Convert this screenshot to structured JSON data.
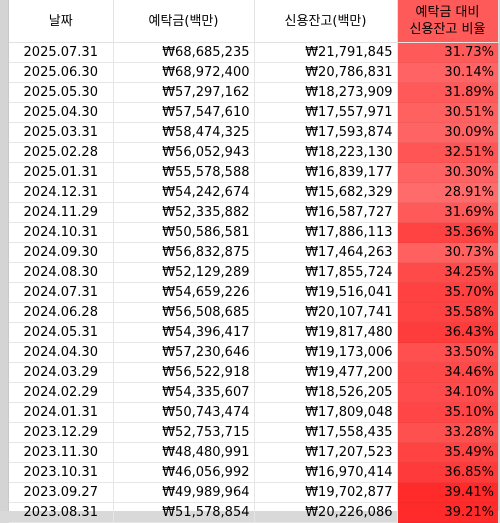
{
  "headers": {
    "date": "날짜",
    "deposits": "예탁금(백만)",
    "credit": "신용잔고(백만)",
    "ratio_line1": "예탁금 대비",
    "ratio_line2": "신용잔고 비율"
  },
  "colors": {
    "ratio_low": "#ff6b6b",
    "ratio_high": "#ff2a2a",
    "header_fill": "#ff5a5a"
  },
  "rows": [
    {
      "date": "2025.07.31",
      "deposits": "₩68,685,235",
      "credit": "₩21,791,845",
      "ratio": "31.73%",
      "ratio_value": 31.73
    },
    {
      "date": "2025.06.30",
      "deposits": "₩68,972,400",
      "credit": "₩20,786,831",
      "ratio": "30.14%",
      "ratio_value": 30.14
    },
    {
      "date": "2025.05.30",
      "deposits": "₩57,297,162",
      "credit": "₩18,273,909",
      "ratio": "31.89%",
      "ratio_value": 31.89
    },
    {
      "date": "2025.04.30",
      "deposits": "₩57,547,610",
      "credit": "₩17,557,971",
      "ratio": "30.51%",
      "ratio_value": 30.51
    },
    {
      "date": "2025.03.31",
      "deposits": "₩58,474,325",
      "credit": "₩17,593,874",
      "ratio": "30.09%",
      "ratio_value": 30.09
    },
    {
      "date": "2025.02.28",
      "deposits": "₩56,052,943",
      "credit": "₩18,223,130",
      "ratio": "32.51%",
      "ratio_value": 32.51
    },
    {
      "date": "2025.01.31",
      "deposits": "₩55,578,588",
      "credit": "₩16,839,177",
      "ratio": "30.30%",
      "ratio_value": 30.3
    },
    {
      "date": "2024.12.31",
      "deposits": "₩54,242,674",
      "credit": "₩15,682,329",
      "ratio": "28.91%",
      "ratio_value": 28.91
    },
    {
      "date": "2024.11.29",
      "deposits": "₩52,335,882",
      "credit": "₩16,587,727",
      "ratio": "31.69%",
      "ratio_value": 31.69
    },
    {
      "date": "2024.10.31",
      "deposits": "₩50,586,581",
      "credit": "₩17,886,113",
      "ratio": "35.36%",
      "ratio_value": 35.36
    },
    {
      "date": "2024.09.30",
      "deposits": "₩56,832,875",
      "credit": "₩17,464,263",
      "ratio": "30.73%",
      "ratio_value": 30.73
    },
    {
      "date": "2024.08.30",
      "deposits": "₩52,129,289",
      "credit": "₩17,855,724",
      "ratio": "34.25%",
      "ratio_value": 34.25
    },
    {
      "date": "2024.07.31",
      "deposits": "₩54,659,226",
      "credit": "₩19,516,041",
      "ratio": "35.70%",
      "ratio_value": 35.7
    },
    {
      "date": "2024.06.28",
      "deposits": "₩56,508,685",
      "credit": "₩20,107,741",
      "ratio": "35.58%",
      "ratio_value": 35.58
    },
    {
      "date": "2024.05.31",
      "deposits": "₩54,396,417",
      "credit": "₩19,817,480",
      "ratio": "36.43%",
      "ratio_value": 36.43
    },
    {
      "date": "2024.04.30",
      "deposits": "₩57,230,646",
      "credit": "₩19,173,006",
      "ratio": "33.50%",
      "ratio_value": 33.5
    },
    {
      "date": "2024.03.29",
      "deposits": "₩56,522,918",
      "credit": "₩19,477,200",
      "ratio": "34.46%",
      "ratio_value": 34.46
    },
    {
      "date": "2024.02.29",
      "deposits": "₩54,335,607",
      "credit": "₩18,526,205",
      "ratio": "34.10%",
      "ratio_value": 34.1
    },
    {
      "date": "2024.01.31",
      "deposits": "₩50,743,474",
      "credit": "₩17,809,048",
      "ratio": "35.10%",
      "ratio_value": 35.1
    },
    {
      "date": "2023.12.29",
      "deposits": "₩52,753,715",
      "credit": "₩17,558,435",
      "ratio": "33.28%",
      "ratio_value": 33.28
    },
    {
      "date": "2023.11.30",
      "deposits": "₩48,480,991",
      "credit": "₩17,207,523",
      "ratio": "35.49%",
      "ratio_value": 35.49
    },
    {
      "date": "2023.10.31",
      "deposits": "₩46,056,992",
      "credit": "₩16,970,414",
      "ratio": "36.85%",
      "ratio_value": 36.85
    },
    {
      "date": "2023.09.27",
      "deposits": "₩49,989,964",
      "credit": "₩19,702,877",
      "ratio": "39.41%",
      "ratio_value": 39.41
    },
    {
      "date": "2023.08.31",
      "deposits": "₩51,578,854",
      "credit": "₩20,226,086",
      "ratio": "39.21%",
      "ratio_value": 39.21
    }
  ]
}
